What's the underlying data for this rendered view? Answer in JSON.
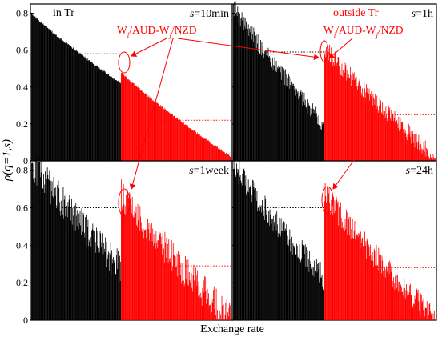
{
  "figure": {
    "ylabel": "ρ(q=1,s)",
    "xlabel": "Exchange rate",
    "colors": {
      "inside": "#000000",
      "outside": "#ff0000",
      "annotation": "#ff0000",
      "dotted": "#ff0000",
      "frame": "#000000"
    }
  },
  "legend_labels": {
    "inside": "in Tr",
    "outside": "outside Tr"
  },
  "annotation_label": {
    "w1": "W",
    "sub1": "i",
    "mid": "/AUD-W",
    "sub2": "j",
    "end": "/NZD"
  },
  "chart_data": [
    {
      "type": "bar",
      "panel": "top-left",
      "scale_label": "s=10min",
      "inside_tr": {
        "n": 170,
        "start": 0.8,
        "end": 0.42,
        "noise": 0.006,
        "dotted_level": 0.58
      },
      "outside_tr": {
        "n": 200,
        "start": 0.48,
        "end": 0.02,
        "noise": 0.006,
        "dotted_level": 0.22
      },
      "ylim": [
        0,
        0.85
      ],
      "yticks": [
        "0",
        "0.2",
        "0.4",
        "0.6",
        "0.8"
      ],
      "grid": false
    },
    {
      "type": "bar",
      "panel": "top-right",
      "scale_label": "s=1h",
      "inside_tr": {
        "n": 170,
        "start": 0.84,
        "end": 0.2,
        "noise": 0.05,
        "dotted_level": 0.59
      },
      "outside_tr": {
        "n": 200,
        "start": 0.62,
        "end": 0.02,
        "noise": 0.05,
        "dotted_level": 0.25
      },
      "ylim": [
        0,
        0.85
      ],
      "grid": false
    },
    {
      "type": "bar",
      "panel": "bottom-left",
      "scale_label": "s=1week",
      "inside_tr": {
        "n": 170,
        "start": 0.85,
        "end": 0.28,
        "noise": 0.09,
        "dotted_level": 0.6
      },
      "outside_tr": {
        "n": 200,
        "start": 0.68,
        "end": 0.0,
        "noise": 0.09,
        "dotted_level": 0.29
      },
      "ylim": [
        0,
        0.85
      ],
      "yticks": [
        "0",
        "0.2",
        "0.4",
        "0.6",
        "0.8"
      ],
      "grid": false
    },
    {
      "type": "bar",
      "panel": "bottom-right",
      "scale_label": "s=24h",
      "inside_tr": {
        "n": 170,
        "start": 0.84,
        "end": 0.22,
        "noise": 0.07,
        "dotted_level": 0.6
      },
      "outside_tr": {
        "n": 200,
        "start": 0.68,
        "end": 0.0,
        "noise": 0.07,
        "dotted_level": 0.28
      },
      "ylim": [
        0,
        0.85
      ],
      "grid": false
    }
  ]
}
